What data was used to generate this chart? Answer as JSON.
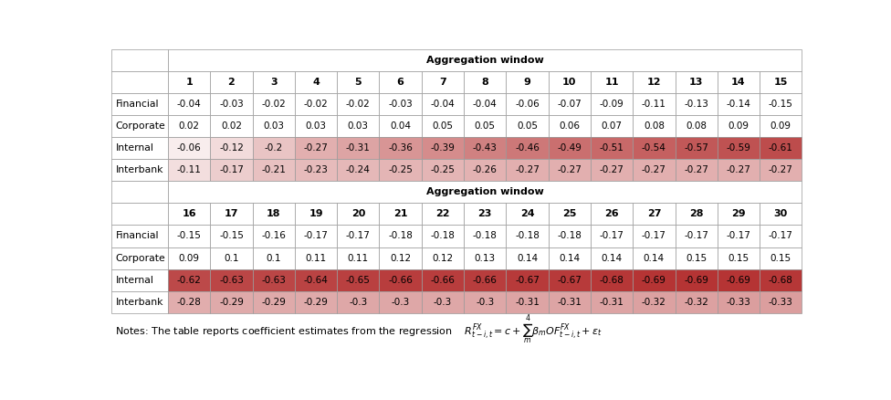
{
  "rows": [
    "Financial",
    "Corporate",
    "Internal",
    "Interbank"
  ],
  "cols1": [
    "1",
    "2",
    "3",
    "4",
    "5",
    "6",
    "7",
    "8",
    "9",
    "10",
    "11",
    "12",
    "13",
    "14",
    "15"
  ],
  "cols2": [
    "16",
    "17",
    "18",
    "19",
    "20",
    "21",
    "22",
    "23",
    "24",
    "25",
    "26",
    "27",
    "28",
    "29",
    "30"
  ],
  "data1": [
    [
      -0.04,
      -0.03,
      -0.02,
      -0.02,
      -0.02,
      -0.03,
      -0.04,
      -0.04,
      -0.06,
      -0.07,
      -0.09,
      -0.11,
      -0.13,
      -0.14,
      -0.15
    ],
    [
      0.02,
      0.02,
      0.03,
      0.03,
      0.03,
      0.04,
      0.05,
      0.05,
      0.05,
      0.06,
      0.07,
      0.08,
      0.08,
      0.09,
      0.09
    ],
    [
      -0.06,
      -0.12,
      -0.2,
      -0.27,
      -0.31,
      -0.36,
      -0.39,
      -0.43,
      -0.46,
      -0.49,
      -0.51,
      -0.54,
      -0.57,
      -0.59,
      -0.61
    ],
    [
      -0.11,
      -0.17,
      -0.21,
      -0.23,
      -0.24,
      -0.25,
      -0.25,
      -0.26,
      -0.27,
      -0.27,
      -0.27,
      -0.27,
      -0.27,
      -0.27,
      -0.27
    ]
  ],
  "data2": [
    [
      -0.15,
      -0.15,
      -0.16,
      -0.17,
      -0.17,
      -0.18,
      -0.18,
      -0.18,
      -0.18,
      -0.18,
      -0.17,
      -0.17,
      -0.17,
      -0.17,
      -0.17
    ],
    [
      0.09,
      0.1,
      0.1,
      0.11,
      0.11,
      0.12,
      0.12,
      0.13,
      0.14,
      0.14,
      0.14,
      0.14,
      0.15,
      0.15,
      0.15
    ],
    [
      -0.62,
      -0.63,
      -0.63,
      -0.64,
      -0.65,
      -0.66,
      -0.66,
      -0.66,
      -0.67,
      -0.67,
      -0.68,
      -0.69,
      -0.69,
      -0.69,
      -0.68
    ],
    [
      -0.28,
      -0.29,
      -0.29,
      -0.29,
      -0.3,
      -0.3,
      -0.3,
      -0.3,
      -0.31,
      -0.31,
      -0.31,
      -0.32,
      -0.32,
      -0.33,
      -0.33
    ]
  ],
  "row_colored": [
    false,
    false,
    true,
    true
  ],
  "color_max_neg": 0.7,
  "dark_red": [
    180,
    50,
    50
  ],
  "light_red": [
    210,
    140,
    140
  ],
  "note_text": "Notes: The table reports coefficient estimates from the regression ",
  "agg_label": "Aggregation window"
}
